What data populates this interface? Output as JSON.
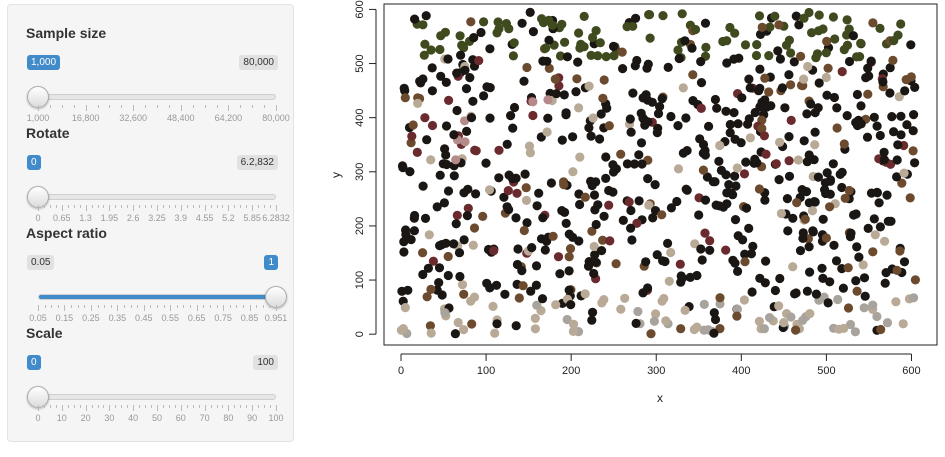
{
  "sidebar": {
    "sliders": [
      {
        "id": "sample-size",
        "label": "Sample size",
        "min_label": "1,000",
        "max_label": "80,000",
        "value_fraction": 0.0,
        "range": false,
        "tick_labels": [
          "1,000",
          "16,800",
          "32,600",
          "48,400",
          "64,200",
          "80,000"
        ]
      },
      {
        "id": "rotate",
        "label": "Rotate",
        "min_label": "0",
        "max_label": "6.2,832",
        "value_fraction": 0.0,
        "range": false,
        "tick_labels": [
          "0",
          "0.65",
          "1.3",
          "1.95",
          "2.6",
          "3.25",
          "3.9",
          "4.55",
          "5.2",
          "5.85",
          "6.2832"
        ]
      },
      {
        "id": "aspect-ratio",
        "label": "Aspect ratio",
        "min_label": "0.05",
        "max_label": "1",
        "value_fraction": 1.0,
        "range": true,
        "tick_labels": [
          "0.05",
          "0.15",
          "0.25",
          "0.35",
          "0.45",
          "0.55",
          "0.65",
          "0.75",
          "0.85",
          "0.951"
        ]
      },
      {
        "id": "scale",
        "label": "Scale",
        "min_label": "0",
        "max_label": "100",
        "value_fraction": 0.0,
        "range": false,
        "tick_labels": [
          "0",
          "10",
          "20",
          "30",
          "40",
          "50",
          "60",
          "70",
          "80",
          "90",
          "100"
        ]
      }
    ]
  },
  "chart_data": {
    "type": "scatter",
    "xlabel": "x",
    "ylabel": "y",
    "xlim": [
      -20,
      630
    ],
    "ylim": [
      -20,
      610
    ],
    "xticks": [
      0,
      100,
      200,
      300,
      400,
      500,
      600
    ],
    "yticks": [
      0,
      100,
      200,
      300,
      400,
      500,
      600
    ],
    "grid": false,
    "point_count": 900,
    "palette": {
      "dark": "#1a1614",
      "olive": "#3f4a1f",
      "brown": "#6b4a2e",
      "maroon": "#6a2a2e",
      "pinkish": "#b58a8a",
      "tan": "#b8aa96",
      "gray": "#a8a39c"
    }
  }
}
